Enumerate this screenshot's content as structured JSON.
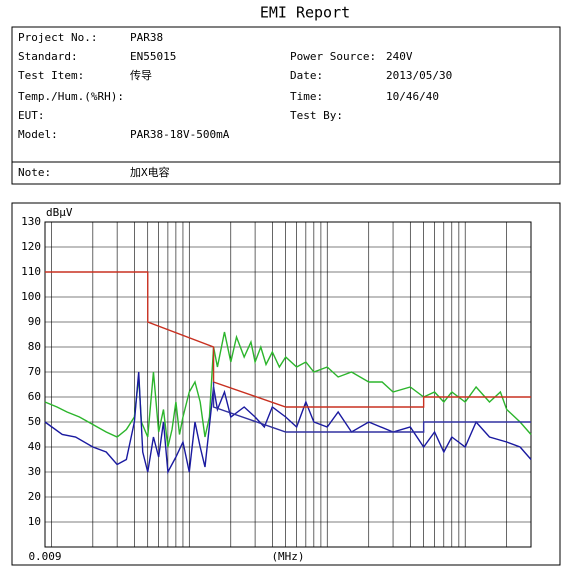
{
  "header": {
    "title": "EMI Report",
    "left": [
      {
        "label": "Project No.:",
        "value": "PAR38"
      },
      {
        "label": "Standard:",
        "value": "EN55015"
      },
      {
        "label": "Test Item:",
        "value": "传导"
      },
      {
        "label": "Temp./Hum.(%RH):"
      },
      {
        "label": "EUT:"
      },
      {
        "label": "Model:",
        "value": "PAR38-18V-500mA"
      }
    ],
    "right": [
      {
        "label": "Power Source:",
        "value": "240V"
      },
      {
        "label": "Date:",
        "value": "2013/05/30"
      },
      {
        "label": "Time:",
        "value": "10/46/40"
      },
      {
        "label": "Test By:"
      }
    ],
    "note": {
      "label": "Note:",
      "value": "加X电容"
    }
  },
  "chart_data": {
    "type": "line",
    "y_label": "dBμV",
    "x_label": "(MHz)",
    "xscale": "log",
    "xlim": [
      0.009,
      30
    ],
    "ylim": [
      0,
      130
    ],
    "xticks": [
      0.009
    ],
    "xgrid": [
      0.01,
      0.02,
      0.03,
      0.04,
      0.05,
      0.06,
      0.07,
      0.08,
      0.09,
      0.1,
      0.2,
      0.3,
      0.4,
      0.5,
      0.6,
      0.7,
      0.8,
      0.9,
      1,
      2,
      3,
      4,
      5,
      6,
      7,
      8,
      9,
      10,
      20
    ],
    "yticks": [
      10,
      20,
      30,
      40,
      50,
      60,
      70,
      80,
      90,
      100,
      110,
      120,
      130
    ],
    "grid": true,
    "series": [
      {
        "color": "#2cb52c",
        "x": [
          0.009,
          0.011,
          0.013,
          0.016,
          0.02,
          0.025,
          0.03,
          0.035,
          0.04,
          0.043,
          0.045,
          0.05,
          0.055,
          0.06,
          0.065,
          0.07,
          0.075,
          0.08,
          0.085,
          0.09,
          0.1,
          0.11,
          0.12,
          0.13,
          0.14,
          0.15,
          0.16,
          0.18,
          0.2,
          0.22,
          0.25,
          0.28,
          0.3,
          0.33,
          0.36,
          0.4,
          0.45,
          0.5,
          0.6,
          0.7,
          0.8,
          1,
          1.2,
          1.5,
          2,
          2.5,
          3,
          4,
          5,
          6,
          7,
          8,
          10,
          12,
          15,
          18,
          20,
          25,
          30
        ],
        "values": [
          58,
          56,
          54,
          52,
          49,
          46,
          44,
          47,
          52,
          68,
          50,
          44,
          70,
          46,
          55,
          40,
          47,
          58,
          45,
          52,
          62,
          66,
          58,
          44,
          52,
          80,
          72,
          86,
          74,
          84,
          76,
          82,
          74,
          80,
          73,
          78,
          72,
          76,
          72,
          74,
          70,
          72,
          68,
          70,
          66,
          66,
          62,
          64,
          60,
          62,
          58,
          62,
          58,
          64,
          58,
          62,
          55,
          50,
          45
        ]
      },
      {
        "color": "#1a1aa0",
        "x": [
          0.009,
          0.012,
          0.015,
          0.02,
          0.025,
          0.03,
          0.035,
          0.04,
          0.043,
          0.046,
          0.05,
          0.055,
          0.06,
          0.065,
          0.07,
          0.08,
          0.09,
          0.1,
          0.11,
          0.12,
          0.13,
          0.15,
          0.16,
          0.18,
          0.2,
          0.25,
          0.3,
          0.35,
          0.4,
          0.5,
          0.6,
          0.7,
          0.8,
          1,
          1.2,
          1.5,
          2,
          3,
          4,
          5,
          6,
          7,
          8,
          10,
          12,
          15,
          20,
          25,
          30
        ],
        "values": [
          50,
          45,
          44,
          40,
          38,
          33,
          35,
          50,
          70,
          38,
          30,
          44,
          36,
          50,
          30,
          36,
          42,
          30,
          50,
          40,
          32,
          64,
          55,
          62,
          52,
          56,
          52,
          48,
          56,
          52,
          48,
          58,
          50,
          48,
          54,
          46,
          50,
          46,
          48,
          40,
          46,
          38,
          44,
          40,
          50,
          44,
          42,
          40,
          35
        ]
      },
      {
        "color": "#c83020",
        "x": [
          0.009,
          0.05,
          0.05,
          0.15,
          0.15,
          0.5,
          5,
          5,
          30
        ],
        "values": [
          110,
          110,
          90,
          80,
          66,
          56,
          56,
          60,
          60
        ]
      },
      {
        "color": "#3030a0",
        "x": [
          0.15,
          0.15,
          0.5,
          5,
          5,
          30
        ],
        "values": [
          66,
          56,
          46,
          46,
          50,
          50
        ]
      }
    ]
  }
}
